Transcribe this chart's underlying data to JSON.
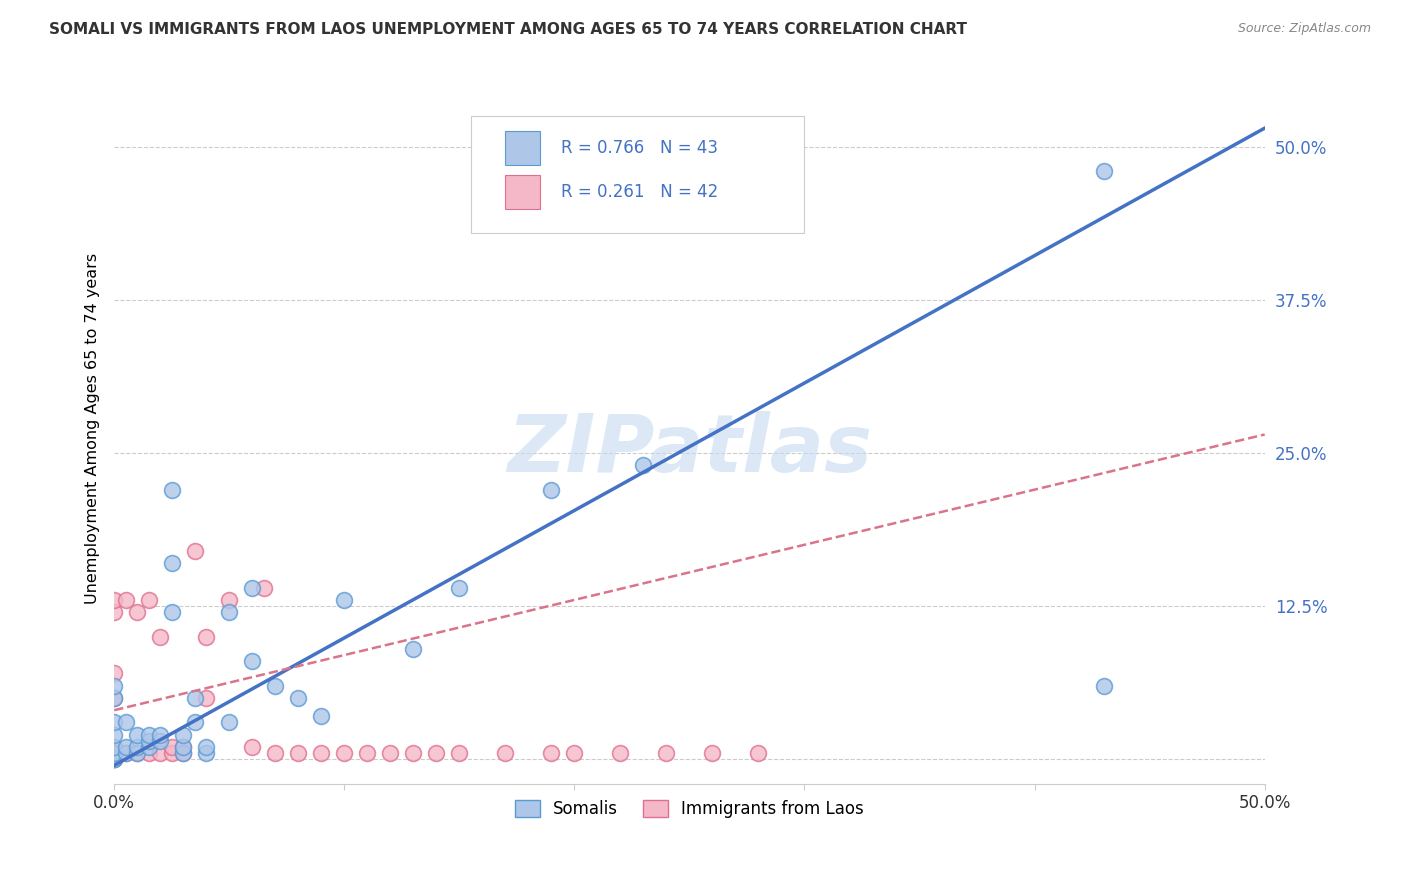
{
  "title": "SOMALI VS IMMIGRANTS FROM LAOS UNEMPLOYMENT AMONG AGES 65 TO 74 YEARS CORRELATION CHART",
  "source": "Source: ZipAtlas.com",
  "ylabel": "Unemployment Among Ages 65 to 74 years",
  "xlim": [
    0.0,
    0.5
  ],
  "ylim": [
    -0.02,
    0.56
  ],
  "yticks": [
    0.0,
    0.125,
    0.25,
    0.375,
    0.5
  ],
  "ytick_labels": [
    "",
    "12.5%",
    "25.0%",
    "37.5%",
    "50.0%"
  ],
  "xticks": [
    0.0,
    0.1,
    0.2,
    0.3,
    0.4,
    0.5
  ],
  "xtick_labels": [
    "0.0%",
    "",
    "",
    "",
    "",
    "50.0%"
  ],
  "somali_color": "#aec6e8",
  "somali_edge": "#5b9bd5",
  "laos_color": "#f4b8c8",
  "laos_edge": "#e07090",
  "regression_blue": "#4472c4",
  "regression_pink": "#d9748a",
  "R_somali": 0.766,
  "N_somali": 43,
  "R_laos": 0.261,
  "N_laos": 42,
  "watermark": "ZIPatlas",
  "blue_line_x": [
    0.0,
    0.5
  ],
  "blue_line_y": [
    -0.005,
    0.515
  ],
  "pink_line_x": [
    0.0,
    0.5
  ],
  "pink_line_y": [
    0.04,
    0.265
  ],
  "somali_x": [
    0.0,
    0.0,
    0.0,
    0.0,
    0.0,
    0.0,
    0.0,
    0.0,
    0.005,
    0.005,
    0.005,
    0.01,
    0.01,
    0.01,
    0.015,
    0.015,
    0.015,
    0.02,
    0.02,
    0.025,
    0.025,
    0.025,
    0.03,
    0.03,
    0.03,
    0.035,
    0.035,
    0.04,
    0.04,
    0.05,
    0.05,
    0.06,
    0.06,
    0.07,
    0.08,
    0.09,
    0.1,
    0.13,
    0.15,
    0.19,
    0.23,
    0.43,
    0.43
  ],
  "somali_y": [
    0.0,
    0.0,
    0.005,
    0.01,
    0.02,
    0.03,
    0.05,
    0.06,
    0.005,
    0.01,
    0.03,
    0.005,
    0.01,
    0.02,
    0.01,
    0.015,
    0.02,
    0.015,
    0.02,
    0.12,
    0.16,
    0.22,
    0.005,
    0.01,
    0.02,
    0.03,
    0.05,
    0.005,
    0.01,
    0.03,
    0.12,
    0.08,
    0.14,
    0.06,
    0.05,
    0.035,
    0.13,
    0.09,
    0.14,
    0.22,
    0.24,
    0.48,
    0.06
  ],
  "laos_x": [
    0.0,
    0.0,
    0.0,
    0.0,
    0.0,
    0.0,
    0.0,
    0.0,
    0.005,
    0.005,
    0.01,
    0.01,
    0.015,
    0.015,
    0.02,
    0.02,
    0.025,
    0.025,
    0.03,
    0.03,
    0.035,
    0.04,
    0.04,
    0.05,
    0.06,
    0.065,
    0.07,
    0.08,
    0.09,
    0.1,
    0.11,
    0.12,
    0.13,
    0.14,
    0.15,
    0.17,
    0.19,
    0.2,
    0.22,
    0.24,
    0.26,
    0.28
  ],
  "laos_y": [
    0.0,
    0.0,
    0.005,
    0.01,
    0.05,
    0.07,
    0.12,
    0.13,
    0.005,
    0.13,
    0.005,
    0.12,
    0.005,
    0.13,
    0.005,
    0.1,
    0.005,
    0.01,
    0.005,
    0.01,
    0.17,
    0.05,
    0.1,
    0.13,
    0.01,
    0.14,
    0.005,
    0.005,
    0.005,
    0.005,
    0.005,
    0.005,
    0.005,
    0.005,
    0.005,
    0.005,
    0.005,
    0.005,
    0.005,
    0.005,
    0.005,
    0.005
  ]
}
